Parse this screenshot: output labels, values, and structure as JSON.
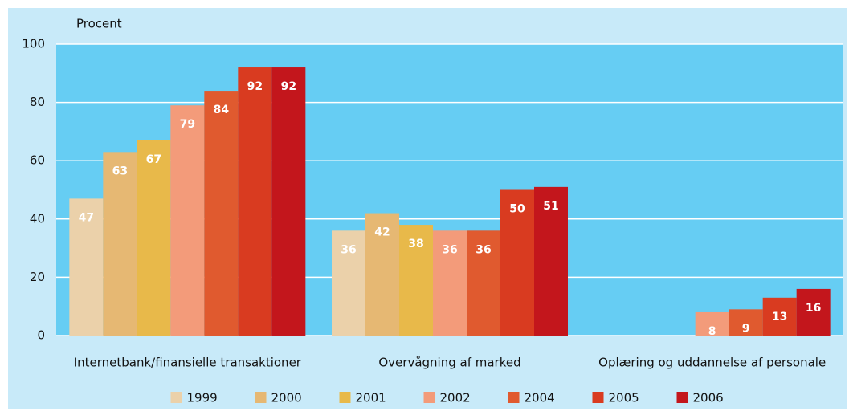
{
  "chart_data": {
    "type": "bar",
    "ylabel": "Procent",
    "categories": [
      "Internetbank/finansielle transaktioner",
      "Overvågning af marked",
      "Oplæring og uddannelse af personale"
    ],
    "series": [
      {
        "name": "1999",
        "color": "#ebd1aa",
        "values": [
          47,
          36,
          null
        ]
      },
      {
        "name": "2000",
        "color": "#e6b873",
        "values": [
          63,
          42,
          null
        ]
      },
      {
        "name": "2001",
        "color": "#e8b94a",
        "values": [
          67,
          38,
          null
        ]
      },
      {
        "name": "2002",
        "color": "#f39b7a",
        "values": [
          79,
          36,
          8
        ]
      },
      {
        "name": "2004",
        "color": "#e05a2f",
        "values": [
          84,
          36,
          9
        ]
      },
      {
        "name": "2005",
        "color": "#d93b20",
        "values": [
          92,
          50,
          13
        ]
      },
      {
        "name": "2006",
        "color": "#c3161c",
        "values": [
          92,
          51,
          16
        ]
      }
    ],
    "ylim": [
      0,
      100
    ],
    "yticks": [
      0,
      20,
      40,
      60,
      80,
      100
    ],
    "grid": true,
    "legend": "bottom"
  }
}
